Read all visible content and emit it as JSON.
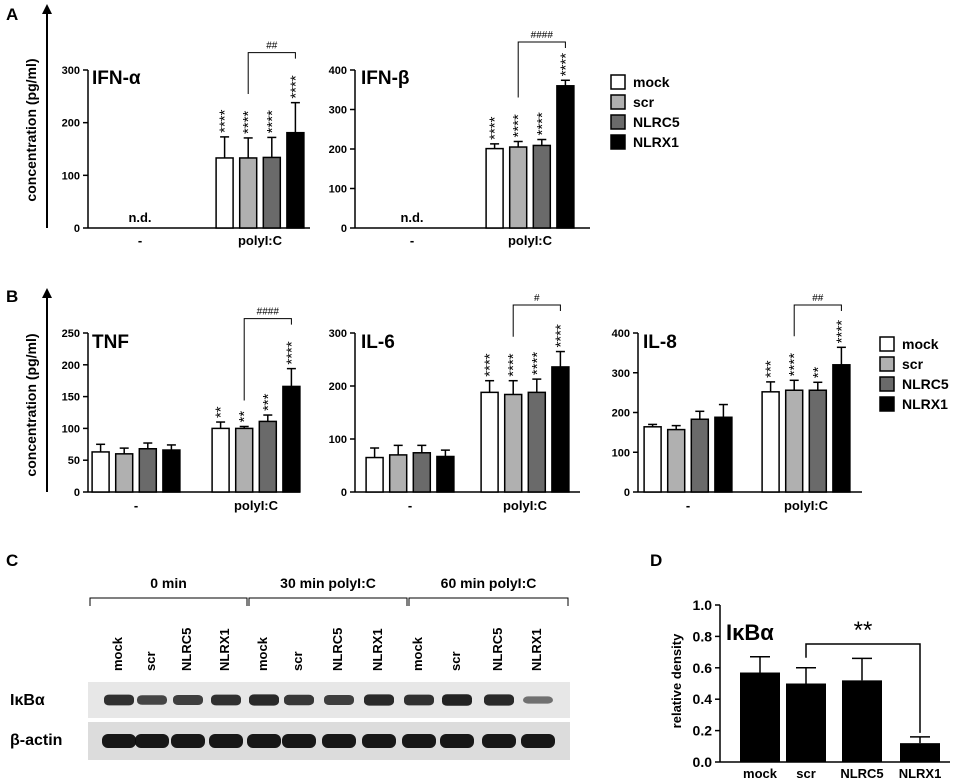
{
  "colors": {
    "mock": "#ffffff",
    "scr": "#b0b0b0",
    "NLRC5": "#6a6a6a",
    "NLRX1": "#000000",
    "axis": "#000000"
  },
  "legend": [
    "mock",
    "scr",
    "NLRC5",
    "NLRX1"
  ],
  "panels": {
    "A": {
      "label": "A",
      "ylabel": "concentration (pg/ml)"
    },
    "B": {
      "label": "B",
      "ylabel": "concentration (pg/ml)"
    },
    "C": {
      "label": "C",
      "time_groups": [
        "0 min",
        "30 min polyI:C",
        "60 min polyI:C"
      ],
      "lane_labels": [
        "mock",
        "scr",
        "NLRC5",
        "NLRX1",
        "mock",
        "scr",
        "NLRC5",
        "NLRX1",
        "mock",
        "scr",
        "NLRC5",
        "NLRX1"
      ],
      "row_labels": [
        "IκBα",
        "β-actin"
      ],
      "ikba_band_intensity": [
        0.85,
        0.7,
        0.75,
        0.85,
        0.9,
        0.8,
        0.75,
        0.9,
        0.85,
        0.95,
        0.9,
        0.4
      ],
      "actin_band_intensity": [
        1,
        1,
        1,
        1,
        1,
        1,
        1,
        1,
        1,
        1,
        1,
        1
      ]
    },
    "D": {
      "label": "D"
    }
  },
  "chart_data": [
    {
      "type": "bar",
      "panel": "A",
      "title": "IFN-α",
      "categories": [
        "-",
        "polyI:C"
      ],
      "ylim": [
        0,
        300
      ],
      "yticks": [
        0,
        100,
        200,
        300
      ],
      "series": [
        {
          "name": "mock",
          "values": [
            null,
            133
          ],
          "errors": [
            null,
            40
          ]
        },
        {
          "name": "scr",
          "values": [
            null,
            133
          ],
          "errors": [
            null,
            38
          ]
        },
        {
          "name": "NLRC5",
          "values": [
            null,
            134
          ],
          "errors": [
            null,
            38
          ]
        },
        {
          "name": "NLRX1",
          "values": [
            null,
            181
          ],
          "errors": [
            null,
            57
          ]
        }
      ],
      "annotations": [
        {
          "category": "-",
          "text": "n.d."
        },
        {
          "category": "polyI:C",
          "series": "mock",
          "text": "****"
        },
        {
          "category": "polyI:C",
          "series": "scr",
          "text": "****"
        },
        {
          "category": "polyI:C",
          "series": "NLRC5",
          "text": "****"
        },
        {
          "category": "polyI:C",
          "series": "NLRX1",
          "text": "****"
        }
      ],
      "brackets": [
        {
          "category": "polyI:C",
          "from": "scr",
          "to": "NLRX1",
          "text": "##"
        }
      ]
    },
    {
      "type": "bar",
      "panel": "A",
      "title": "IFN-β",
      "categories": [
        "-",
        "polyI:C"
      ],
      "ylim": [
        0,
        400
      ],
      "yticks": [
        0,
        100,
        200,
        300,
        400
      ],
      "series": [
        {
          "name": "mock",
          "values": [
            null,
            201
          ],
          "errors": [
            null,
            12
          ]
        },
        {
          "name": "scr",
          "values": [
            null,
            205
          ],
          "errors": [
            null,
            14
          ]
        },
        {
          "name": "NLRC5",
          "values": [
            null,
            209
          ],
          "errors": [
            null,
            15
          ]
        },
        {
          "name": "NLRX1",
          "values": [
            null,
            360
          ],
          "errors": [
            null,
            14
          ]
        }
      ],
      "annotations": [
        {
          "category": "-",
          "text": "n.d."
        },
        {
          "category": "polyI:C",
          "series": "mock",
          "text": "****"
        },
        {
          "category": "polyI:C",
          "series": "scr",
          "text": "****"
        },
        {
          "category": "polyI:C",
          "series": "NLRC5",
          "text": "****"
        },
        {
          "category": "polyI:C",
          "series": "NLRX1",
          "text": "****"
        }
      ],
      "brackets": [
        {
          "category": "polyI:C",
          "from": "scr",
          "to": "NLRX1",
          "text": "####"
        }
      ]
    },
    {
      "type": "bar",
      "panel": "B",
      "title": "TNF",
      "categories": [
        "-",
        "polyI:C"
      ],
      "ylim": [
        0,
        250
      ],
      "yticks": [
        0,
        50,
        100,
        150,
        200,
        250
      ],
      "series": [
        {
          "name": "mock",
          "values": [
            63,
            100
          ],
          "errors": [
            12,
            10
          ]
        },
        {
          "name": "scr",
          "values": [
            60,
            100
          ],
          "errors": [
            9,
            3
          ]
        },
        {
          "name": "NLRC5",
          "values": [
            68,
            111
          ],
          "errors": [
            9,
            10
          ]
        },
        {
          "name": "NLRX1",
          "values": [
            66,
            166
          ],
          "errors": [
            8,
            28
          ]
        }
      ],
      "annotations": [
        {
          "category": "polyI:C",
          "series": "mock",
          "text": "**"
        },
        {
          "category": "polyI:C",
          "series": "scr",
          "text": "**"
        },
        {
          "category": "polyI:C",
          "series": "NLRC5",
          "text": "***"
        },
        {
          "category": "polyI:C",
          "series": "NLRX1",
          "text": "****"
        }
      ],
      "brackets": [
        {
          "category": "polyI:C",
          "from": "scr",
          "to": "NLRX1",
          "text": "####"
        }
      ]
    },
    {
      "type": "bar",
      "panel": "B",
      "title": "IL-6",
      "categories": [
        "-",
        "polyI:C"
      ],
      "ylim": [
        0,
        300
      ],
      "yticks": [
        0,
        100,
        200,
        300
      ],
      "series": [
        {
          "name": "mock",
          "values": [
            65,
            188
          ],
          "errors": [
            18,
            22
          ]
        },
        {
          "name": "scr",
          "values": [
            70,
            184
          ],
          "errors": [
            18,
            26
          ]
        },
        {
          "name": "NLRC5",
          "values": [
            74,
            188
          ],
          "errors": [
            14,
            25
          ]
        },
        {
          "name": "NLRX1",
          "values": [
            67,
            236
          ],
          "errors": [
            12,
            29
          ]
        }
      ],
      "annotations": [
        {
          "category": "polyI:C",
          "series": "mock",
          "text": "****"
        },
        {
          "category": "polyI:C",
          "series": "scr",
          "text": "****"
        },
        {
          "category": "polyI:C",
          "series": "NLRC5",
          "text": "****"
        },
        {
          "category": "polyI:C",
          "series": "NLRX1",
          "text": "****"
        }
      ],
      "brackets": [
        {
          "category": "polyI:C",
          "from": "scr",
          "to": "NLRX1",
          "text": "#"
        }
      ]
    },
    {
      "type": "bar",
      "panel": "B",
      "title": "IL-8",
      "categories": [
        "-",
        "polyI:C"
      ],
      "ylim": [
        0,
        400
      ],
      "yticks": [
        0,
        100,
        200,
        300,
        400
      ],
      "series": [
        {
          "name": "mock",
          "values": [
            164,
            252
          ],
          "errors": [
            6,
            25
          ]
        },
        {
          "name": "scr",
          "values": [
            157,
            256
          ],
          "errors": [
            10,
            25
          ]
        },
        {
          "name": "NLRC5",
          "values": [
            183,
            256
          ],
          "errors": [
            20,
            20
          ]
        },
        {
          "name": "NLRX1",
          "values": [
            188,
            320
          ],
          "errors": [
            32,
            44
          ]
        }
      ],
      "annotations": [
        {
          "category": "polyI:C",
          "series": "mock",
          "text": "***"
        },
        {
          "category": "polyI:C",
          "series": "scr",
          "text": "****"
        },
        {
          "category": "polyI:C",
          "series": "NLRC5",
          "text": "**"
        },
        {
          "category": "polyI:C",
          "series": "NLRX1",
          "text": "****"
        }
      ],
      "brackets": [
        {
          "category": "polyI:C",
          "from": "scr",
          "to": "NLRX1",
          "text": "##"
        }
      ]
    },
    {
      "type": "bar",
      "panel": "D",
      "title": "IκBα",
      "ylabel": "relative density",
      "categories": [
        "mock",
        "scr",
        "NLRC5",
        "NLRX1"
      ],
      "values": [
        0.57,
        0.5,
        0.52,
        0.12
      ],
      "errors": [
        0.1,
        0.1,
        0.14,
        0.04
      ],
      "ylim": [
        0,
        1.0
      ],
      "yticks": [
        "0.0",
        "0.2",
        "0.4",
        "0.6",
        "0.8",
        "1.0"
      ],
      "brackets": [
        {
          "from": "scr",
          "to": "NLRX1",
          "text": "**"
        }
      ]
    }
  ]
}
